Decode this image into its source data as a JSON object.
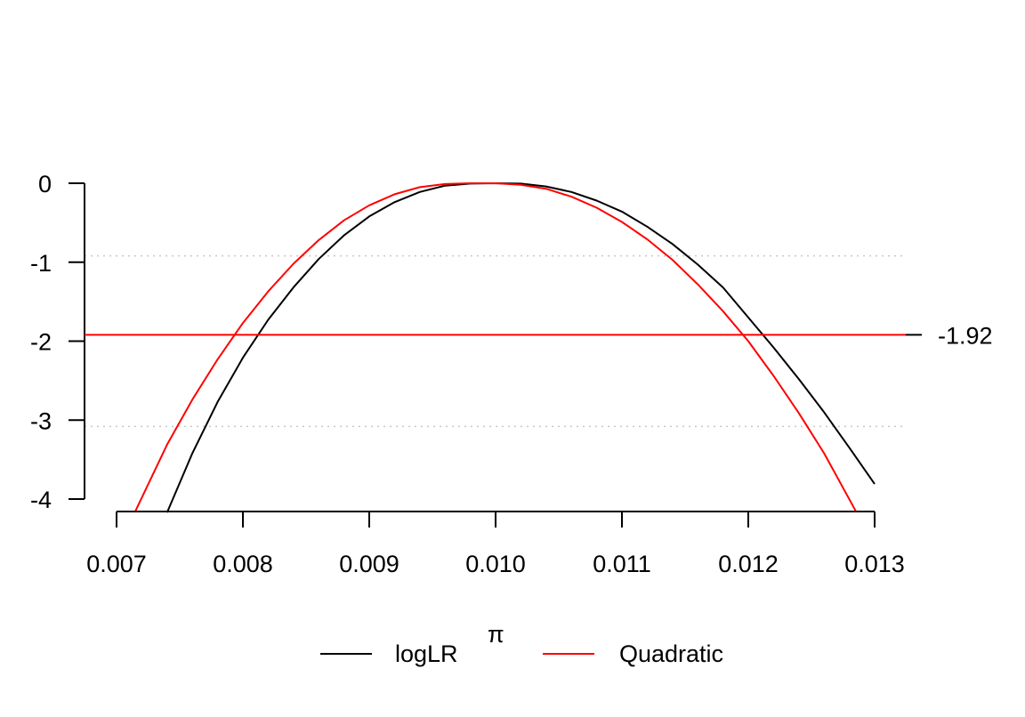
{
  "chart_data": {
    "type": "line",
    "title": "",
    "xlabel": "π",
    "ylabel": "",
    "xlim": [
      0.0069,
      0.0132
    ],
    "ylim": [
      -4.15,
      0.0
    ],
    "x_ticks": [
      0.007,
      0.008,
      0.009,
      0.01,
      0.011,
      0.012,
      0.013
    ],
    "x_tick_labels": [
      "0.007",
      "0.008",
      "0.009",
      "0.010",
      "0.011",
      "0.012",
      "0.013"
    ],
    "y_ticks": [
      0,
      -1,
      -2,
      -3,
      -4
    ],
    "y_tick_labels": [
      "0",
      "-1",
      "-2",
      "-3",
      "-4"
    ],
    "dotted_gridlines_y": [
      -0.92,
      -1.92,
      -3.08
    ],
    "reference_line": {
      "y": -1.92,
      "label": "-1.92",
      "color": "#ff0000"
    },
    "series": [
      {
        "name": "logLR",
        "color": "#000000",
        "x": [
          0.0074,
          0.0076,
          0.0078,
          0.008,
          0.0082,
          0.0084,
          0.0086,
          0.0088,
          0.009,
          0.0092,
          0.0094,
          0.0096,
          0.0098,
          0.01,
          0.0102,
          0.0104,
          0.0106,
          0.0108,
          0.011,
          0.0112,
          0.0114,
          0.0116,
          0.0118,
          0.012,
          0.0122,
          0.0124,
          0.0126,
          0.0128,
          0.013
        ],
        "y": [
          -4.17,
          -3.42,
          -2.77,
          -2.21,
          -1.73,
          -1.32,
          -0.96,
          -0.66,
          -0.42,
          -0.24,
          -0.11,
          -0.03,
          -0.005,
          0.0,
          -0.005,
          -0.04,
          -0.11,
          -0.22,
          -0.36,
          -0.55,
          -0.77,
          -1.03,
          -1.32,
          -1.7,
          -2.08,
          -2.48,
          -2.9,
          -3.35,
          -3.81
        ]
      },
      {
        "name": "Quadratic",
        "color": "#ff0000",
        "x": [
          0.00715,
          0.0074,
          0.0076,
          0.0078,
          0.008,
          0.0082,
          0.0084,
          0.0086,
          0.0088,
          0.009,
          0.0092,
          0.0094,
          0.0096,
          0.0098,
          0.01,
          0.0102,
          0.0104,
          0.0106,
          0.0108,
          0.011,
          0.0112,
          0.0114,
          0.0116,
          0.0118,
          0.012,
          0.0122,
          0.0124,
          0.0126,
          0.01285
        ],
        "y": [
          -4.15,
          -3.31,
          -2.74,
          -2.23,
          -1.77,
          -1.37,
          -1.02,
          -0.72,
          -0.47,
          -0.28,
          -0.14,
          -0.05,
          -0.01,
          0.0,
          0.0,
          -0.02,
          -0.07,
          -0.17,
          -0.31,
          -0.49,
          -0.71,
          -0.97,
          -1.28,
          -1.62,
          -2.0,
          -2.44,
          -2.91,
          -3.42,
          -4.15
        ]
      }
    ],
    "legend": {
      "position": "bottom",
      "entries": [
        "logLR",
        "Quadratic"
      ]
    }
  }
}
